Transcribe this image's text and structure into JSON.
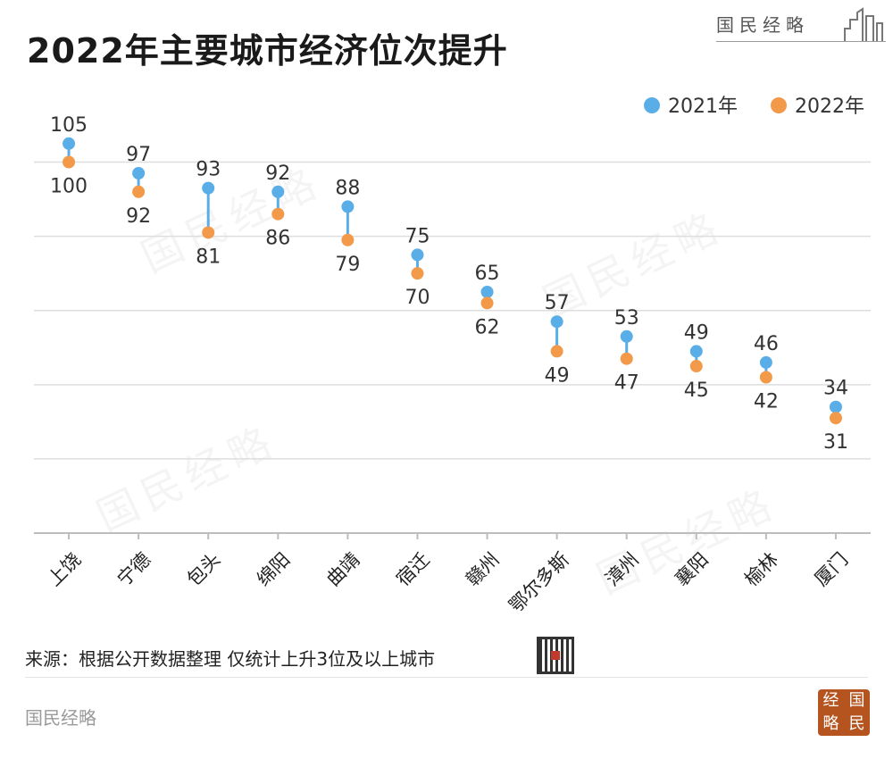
{
  "header": {
    "title": "2022年主要城市经济位次提升",
    "brand": "国民经略"
  },
  "chart_data": {
    "type": "dumbbell",
    "categories": [
      "上饶",
      "宁德",
      "包头",
      "绵阳",
      "曲靖",
      "宿迁",
      "赣州",
      "鄂尔多斯",
      "漳州",
      "襄阳",
      "榆林",
      "厦门"
    ],
    "series": [
      {
        "name": "2021年",
        "color": "#5aaee8",
        "values": [
          105,
          97,
          93,
          92,
          88,
          75,
          65,
          57,
          53,
          49,
          46,
          34
        ]
      },
      {
        "name": "2022年",
        "color": "#f2994a",
        "values": [
          100,
          92,
          81,
          86,
          79,
          70,
          62,
          49,
          47,
          45,
          42,
          31
        ]
      }
    ],
    "ylim": [
      0,
      110
    ],
    "y_inverted": true,
    "grid": true,
    "legend": "top-right",
    "connector_color": "#5aaee8"
  },
  "footer": {
    "source": "来源：根据公开数据整理 仅统计上升3位及以上城市",
    "brand": "国民经略",
    "seal_chars": [
      "经",
      "国",
      "略",
      "民"
    ]
  }
}
